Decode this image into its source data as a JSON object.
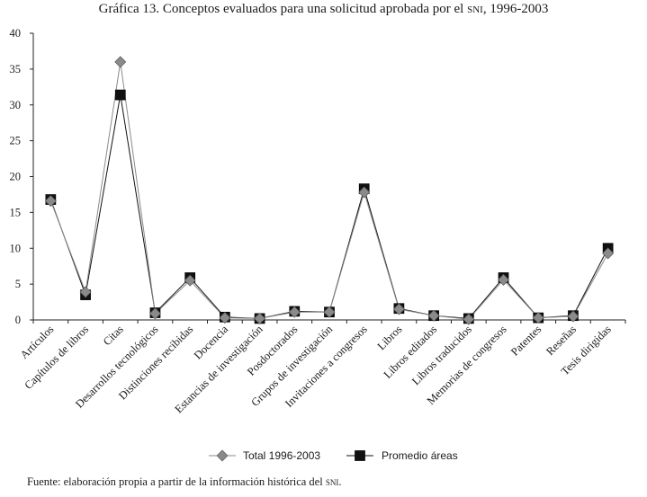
{
  "header": {
    "title_main": "Gráfica 13. Conceptos evaluados para una solicitud aprobada por el ",
    "title_acronym": "sni",
    "title_years": ", 1996-2003"
  },
  "footer": {
    "source_main": "Fuente: elaboración propia a partir de la información histórica del ",
    "source_acronym": "sni",
    "source_end": "."
  },
  "chart_data": {
    "type": "line",
    "title": "Gráfica 13. Conceptos evaluados para una solicitud aprobada por el SNI, 1996-2003",
    "xlabel": "",
    "ylabel": "",
    "ylim": [
      0,
      40
    ],
    "yticks": [
      0,
      5,
      10,
      15,
      20,
      25,
      30,
      35,
      40
    ],
    "legend_position": "bottom-center",
    "categories": [
      "Artículos",
      "Capítulos de libros",
      "Citas",
      "Desarrollos tecnológicos",
      "Distinciones recibidas",
      "Docencia",
      "Estancias de investigación",
      "Posdoctorados",
      "Grupos de investigación",
      "Invitaciones a congresos",
      "Libros",
      "Libros editados",
      "Libros traducidos",
      "Memorias de congresos",
      "Patentes",
      "Reseñas",
      "Tesis dirigidas"
    ],
    "series": [
      {
        "name": "Total 1996-2003",
        "marker": "diamond",
        "color": "#8a8a8a",
        "values": [
          16.6,
          3.9,
          36.0,
          0.9,
          5.5,
          0.3,
          0.2,
          1.1,
          1.1,
          17.8,
          1.5,
          0.6,
          0.1,
          5.6,
          0.3,
          0.5,
          9.3
        ]
      },
      {
        "name": "Promedio áreas",
        "marker": "square",
        "color": "#111111",
        "values": [
          16.8,
          3.5,
          31.4,
          1.0,
          5.9,
          0.4,
          0.2,
          1.2,
          1.1,
          18.3,
          1.6,
          0.6,
          0.2,
          5.9,
          0.3,
          0.6,
          10.0
        ]
      }
    ]
  }
}
